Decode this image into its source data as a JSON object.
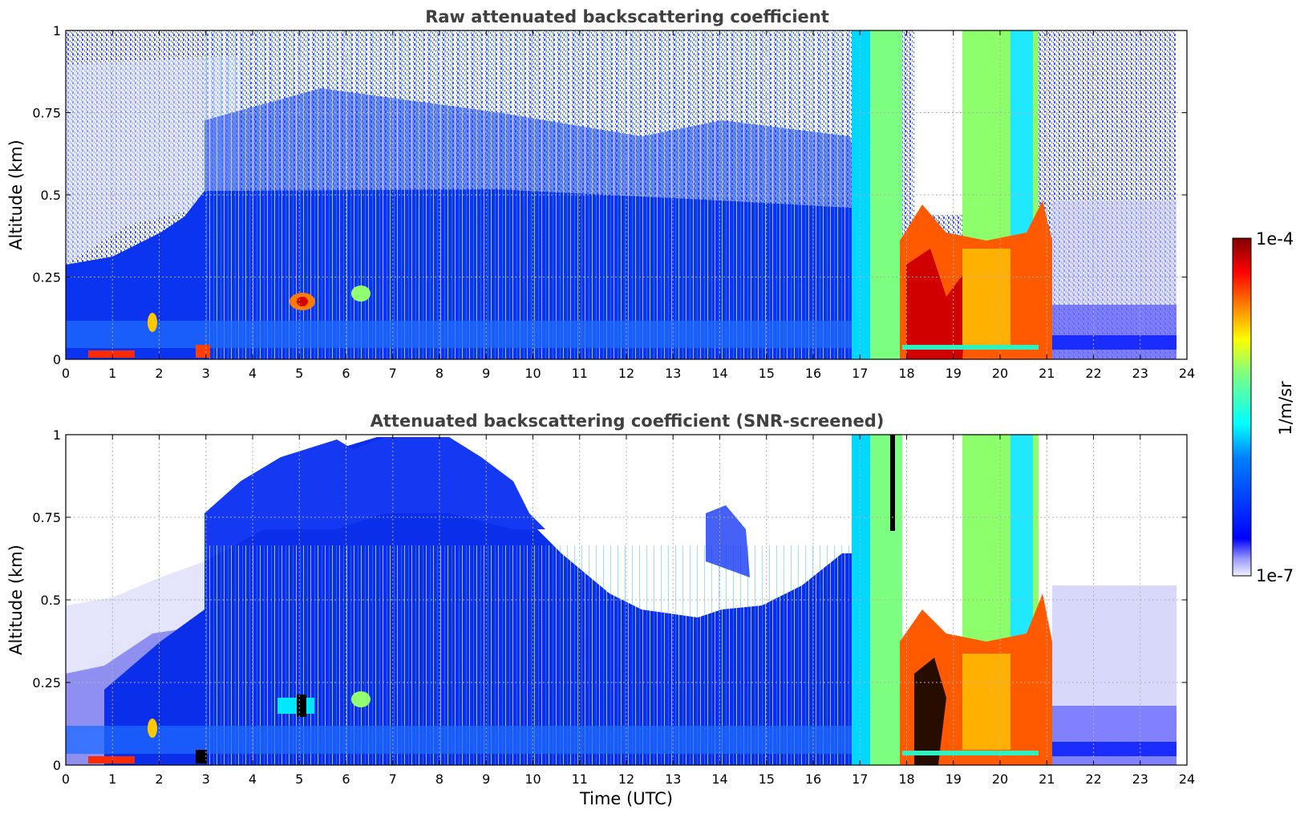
{
  "chart_data": [
    {
      "type": "heatmap",
      "title": "Raw attenuated backscattering coefficient",
      "xlabel": "",
      "ylabel": "Altitude (km)",
      "xlim": [
        0,
        24
      ],
      "ylim": [
        0,
        1
      ],
      "xticks": [
        "0",
        "1",
        "2",
        "3",
        "4",
        "5",
        "6",
        "7",
        "8",
        "9",
        "10",
        "11",
        "12",
        "13",
        "14",
        "15",
        "16",
        "17",
        "18",
        "19",
        "20",
        "21",
        "22",
        "23",
        "24"
      ],
      "yticks": [
        "0",
        "0.25",
        "0.5",
        "0.75",
        "1"
      ],
      "grid": true,
      "colormap": "jet",
      "data_end_time": 23.8,
      "features": [
        {
          "description": "weak background noise above aerosol layer",
          "t_start": 0,
          "t_end": 23.8,
          "z_bottom": 0.3,
          "z_top": 1.0
        },
        {
          "description": "aerosol layer",
          "t_start": 0,
          "t_end": 17.0,
          "z_bottom": 0,
          "z_top": 0.45
        },
        {
          "description": "near-surface aerosol maxima",
          "t_start": 0.5,
          "t_end": 1.5,
          "z_bottom": 0,
          "z_top": 0.02
        },
        {
          "description": "aerosol patch",
          "t_start": 4.7,
          "t_end": 5.4,
          "z_bottom": 0.12,
          "z_top": 0.2
        },
        {
          "description": "cloud / precipitation",
          "t_start": 16.9,
          "t_end": 21.3,
          "z_bottom": 0,
          "z_top": 1.0
        }
      ]
    },
    {
      "type": "heatmap",
      "title": "Attenuated backscattering coefficient (SNR-screened)",
      "xlabel": "Time (UTC)",
      "ylabel": "Altitude (km)",
      "xlim": [
        0,
        24
      ],
      "ylim": [
        0,
        1
      ],
      "xticks": [
        "0",
        "1",
        "2",
        "3",
        "4",
        "5",
        "6",
        "7",
        "8",
        "9",
        "10",
        "11",
        "12",
        "13",
        "14",
        "15",
        "16",
        "17",
        "18",
        "19",
        "20",
        "21",
        "22",
        "23",
        "24"
      ],
      "yticks": [
        "0",
        "0.25",
        "0.5",
        "0.75",
        "1"
      ],
      "grid": true,
      "colormap": "jet",
      "data_end_time": 23.8,
      "features": [
        {
          "description": "screened aerosol layer top",
          "t_start": 0,
          "t_end": 17.0,
          "z_bottom": 0,
          "z_top": 0.48
        },
        {
          "description": "elevated aerosol plumes",
          "t_start": 3.0,
          "t_end": 9.0,
          "z_bottom": 0.45,
          "z_top": 1.0
        },
        {
          "description": "cloud / precipitation",
          "t_start": 16.9,
          "t_end": 21.3,
          "z_bottom": 0,
          "z_top": 1.0
        }
      ]
    }
  ],
  "colorbar": {
    "label": "1/m/sr",
    "max_label": "1e-4",
    "min_label": "1e-7",
    "scale": "log",
    "range": [
      1e-07,
      0.0001
    ]
  },
  "colors": {
    "low": "#e8e8fa",
    "mid": "#0a2bea",
    "high": "#7f0000",
    "title": "#404040"
  }
}
